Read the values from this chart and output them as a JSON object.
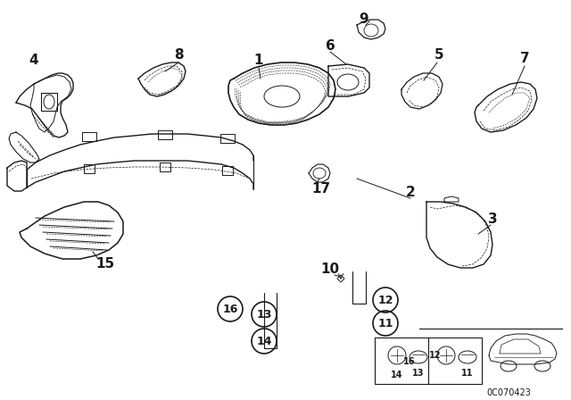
{
  "bg_color": "#ffffff",
  "line_color": "#1a1a1a",
  "diagram_code": "0C070423",
  "fig_w": 6.4,
  "fig_h": 4.48,
  "dpi": 100
}
